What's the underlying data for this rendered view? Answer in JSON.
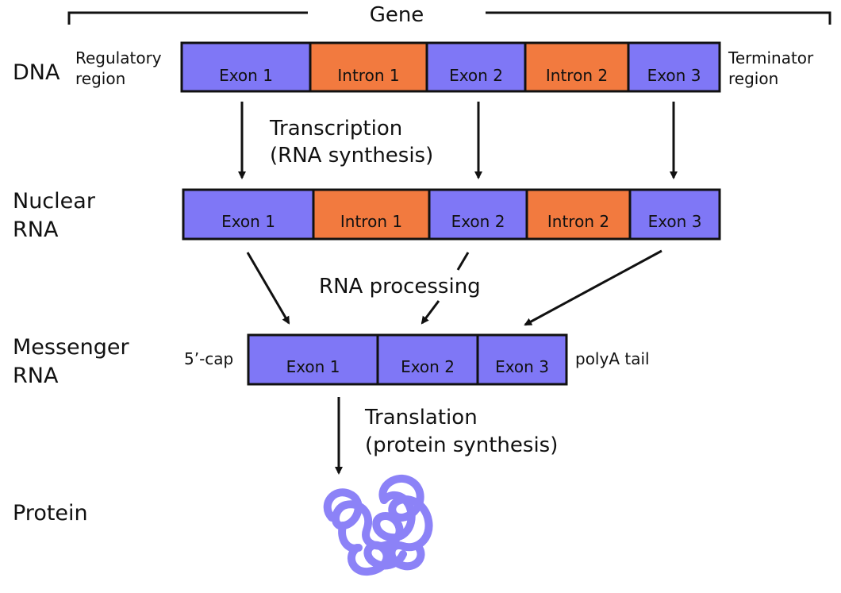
{
  "colors": {
    "exon": "#7f77f6",
    "intron": "#f27a3f",
    "stroke": "#111111",
    "protein": "#8c82f7"
  },
  "gene": {
    "title": "Gene"
  },
  "dna": {
    "label": "DNA",
    "left_label_line1": "Regulatory",
    "left_label_line2": "region",
    "right_label_line1": "Terminator",
    "right_label_line2": "region",
    "segments": [
      "Exon 1",
      "Intron 1",
      "Exon 2",
      "Intron 2",
      "Exon 3"
    ]
  },
  "transcription": {
    "line1": "Transcription",
    "line2": "(RNA synthesis)"
  },
  "nuclear_rna": {
    "label_line1": "Nuclear",
    "label_line2": "RNA",
    "segments": [
      "Exon 1",
      "Intron 1",
      "Exon 2",
      "Intron 2",
      "Exon 3"
    ]
  },
  "processing": {
    "label": "RNA processing"
  },
  "mrna": {
    "label_line1": "Messenger",
    "label_line2": "RNA",
    "left_label": "5’-cap",
    "right_label": "polyA tail",
    "segments": [
      "Exon 1",
      "Exon 2",
      "Exon 3"
    ]
  },
  "translation": {
    "line1": "Translation",
    "line2": "(protein synthesis)"
  },
  "protein": {
    "label": "Protein"
  }
}
